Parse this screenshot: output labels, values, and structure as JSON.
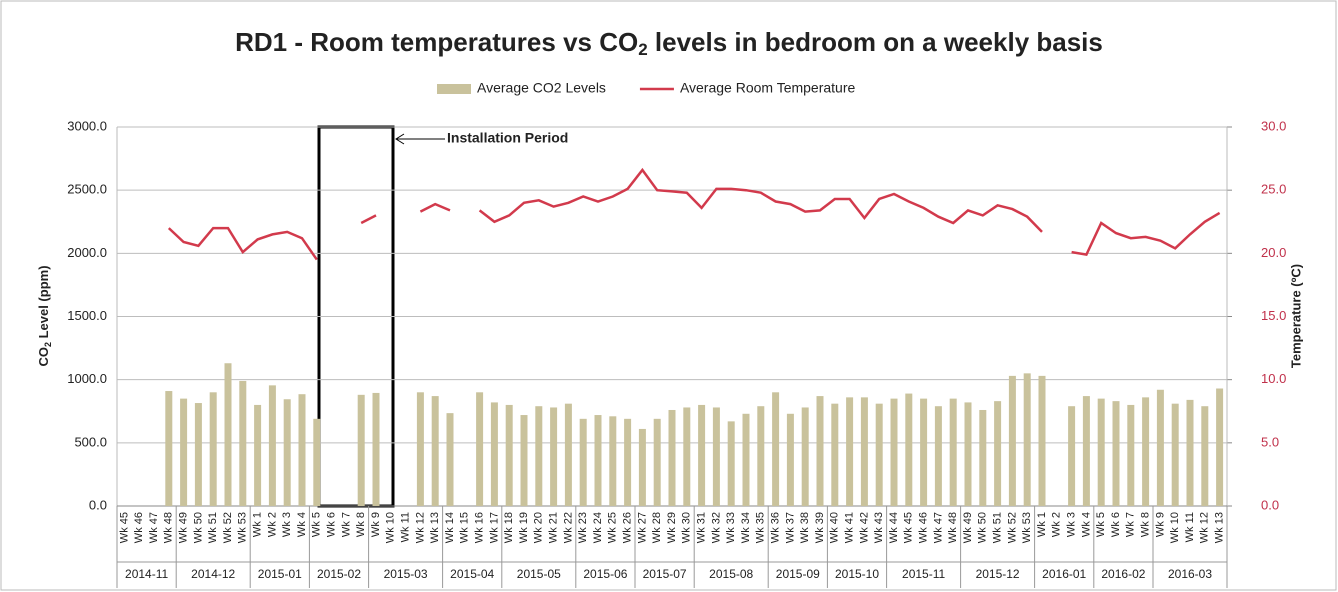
{
  "chart_data": {
    "type": "combo",
    "title_parts": [
      "RD1 - Room temperatures vs CO",
      "2",
      " levels in bedroom on a weekly basis"
    ],
    "y_label_parts": [
      "CO",
      "2",
      " Level (ppm)"
    ],
    "y2_label": "Temperature (ºC)",
    "annotation": "Installation Period",
    "categories": [
      "Wk 45",
      "Wk 46",
      "Wk 47",
      "Wk 48",
      "Wk 49",
      "Wk 50",
      "Wk 51",
      "Wk 52",
      "Wk 53",
      "Wk 1",
      "Wk 2",
      "Wk 3",
      "Wk 4",
      "Wk 5",
      "Wk 6",
      "Wk 7",
      "Wk 8",
      "Wk 9",
      "Wk 10",
      "Wk 11",
      "Wk 12",
      "Wk 13",
      "Wk 14",
      "Wk 15",
      "Wk 16",
      "Wk 17",
      "Wk 18",
      "Wk 19",
      "Wk 20",
      "Wk 21",
      "Wk 22",
      "Wk 23",
      "Wk 24",
      "Wk 25",
      "Wk 26",
      "Wk 27",
      "Wk 28",
      "Wk 29",
      "Wk 30",
      "Wk 31",
      "Wk 32",
      "Wk 33",
      "Wk 34",
      "Wk 35",
      "Wk 36",
      "Wk 37",
      "Wk 38",
      "Wk 39",
      "Wk 40",
      "Wk 41",
      "Wk 42",
      "Wk 43",
      "Wk 44",
      "Wk 45",
      "Wk 46",
      "Wk 47",
      "Wk 48",
      "Wk 49",
      "Wk 50",
      "Wk 51",
      "Wk 52",
      "Wk 53",
      "Wk 1",
      "Wk 2",
      "Wk 3",
      "Wk 4",
      "Wk 5",
      "Wk 6",
      "Wk 7",
      "Wk 8",
      "Wk 9",
      "Wk 10",
      "Wk 11",
      "Wk 12",
      "Wk 13"
    ],
    "months": [
      "2014-11",
      null,
      null,
      null,
      "2014-12",
      null,
      null,
      null,
      null,
      "2015-01",
      null,
      null,
      null,
      "2015-02",
      null,
      null,
      null,
      "2015-03",
      null,
      null,
      null,
      null,
      "2015-04",
      null,
      null,
      null,
      "2015-05",
      null,
      null,
      null,
      null,
      "2015-06",
      null,
      null,
      null,
      "2015-07",
      null,
      null,
      null,
      "2015-08",
      null,
      null,
      null,
      null,
      "2015-09",
      null,
      null,
      null,
      "2015-10",
      null,
      null,
      null,
      "2015-11",
      null,
      null,
      null,
      null,
      "2015-12",
      null,
      null,
      null,
      null,
      "2016-01",
      null,
      null,
      null,
      "2016-02",
      null,
      null,
      null,
      "2016-03",
      null,
      null,
      null,
      null
    ],
    "series": [
      {
        "name": "Average CO2 Levels",
        "type": "bar",
        "color": "#c9c29c",
        "values": [
          null,
          null,
          null,
          910,
          850,
          815,
          900,
          1130,
          990,
          800,
          955,
          845,
          885,
          690,
          null,
          null,
          880,
          895,
          null,
          null,
          900,
          870,
          735,
          null,
          900,
          820,
          800,
          720,
          790,
          780,
          810,
          690,
          720,
          710,
          690,
          610,
          690,
          760,
          780,
          800,
          780,
          670,
          730,
          790,
          900,
          730,
          780,
          870,
          810,
          860,
          860,
          810,
          850,
          890,
          850,
          790,
          850,
          820,
          760,
          830,
          1030,
          1050,
          1030,
          null,
          790,
          870,
          850,
          830,
          800,
          860,
          920,
          810,
          840,
          790,
          930
        ]
      },
      {
        "name": "Average Room Temperature",
        "type": "line",
        "axis": "y2",
        "color": "#d23a4c",
        "values": [
          null,
          null,
          null,
          22.0,
          20.9,
          20.6,
          22.0,
          22.0,
          20.1,
          21.1,
          21.5,
          21.7,
          21.2,
          19.5,
          null,
          null,
          22.4,
          23.0,
          null,
          null,
          23.3,
          23.9,
          23.4,
          null,
          23.4,
          22.5,
          23.0,
          24.0,
          24.2,
          23.7,
          24.0,
          24.5,
          24.1,
          24.5,
          25.1,
          26.6,
          25.0,
          24.9,
          24.8,
          23.6,
          25.1,
          25.1,
          25.0,
          24.8,
          24.1,
          23.9,
          23.3,
          23.4,
          24.3,
          24.3,
          22.8,
          24.3,
          24.7,
          24.1,
          23.6,
          22.9,
          22.4,
          23.4,
          23.0,
          23.8,
          23.5,
          22.9,
          21.7,
          null,
          20.1,
          19.9,
          22.4,
          21.6,
          21.2,
          21.3,
          21.0,
          20.4,
          21.5,
          22.5,
          23.2
        ]
      }
    ],
    "ylim": [
      0,
      3000
    ],
    "yticks": [
      {
        "value": 0,
        "label": "0.0"
      },
      {
        "value": 500,
        "label": "500.0"
      },
      {
        "value": 1000,
        "label": "1000.0"
      },
      {
        "value": 1500,
        "label": "1500.0"
      },
      {
        "value": 2000,
        "label": "2000.0"
      },
      {
        "value": 2500,
        "label": "2500.0"
      },
      {
        "value": 3000,
        "label": "3000.0"
      }
    ],
    "y2lim": [
      0,
      30
    ],
    "y2ticks": [
      {
        "value": 0,
        "label": "0.0"
      },
      {
        "value": 5,
        "label": "5.0"
      },
      {
        "value": 10,
        "label": "10.0"
      },
      {
        "value": 15,
        "label": "15.0"
      },
      {
        "value": 20,
        "label": "20.0"
      },
      {
        "value": 25,
        "label": "25.0"
      },
      {
        "value": 30,
        "label": "30.0"
      }
    ],
    "grid": true,
    "legend": "top"
  }
}
